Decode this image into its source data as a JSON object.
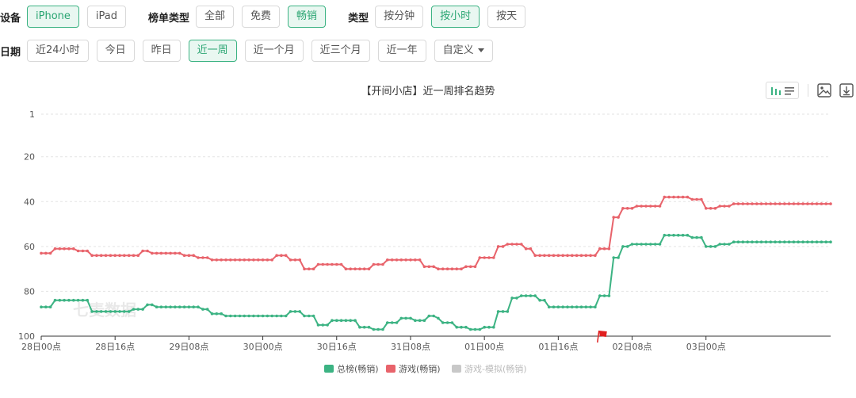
{
  "filters": {
    "device_label": "设备",
    "device_options": [
      {
        "label": "iPhone",
        "active": true
      },
      {
        "label": "iPad",
        "active": false
      }
    ],
    "rank_type_label": "榜单类型",
    "rank_type_options": [
      {
        "label": "全部",
        "active": false
      },
      {
        "label": "免费",
        "active": false
      },
      {
        "label": "畅销",
        "active": true
      }
    ],
    "type_label": "类型",
    "type_options": [
      {
        "label": "按分钟",
        "active": false
      },
      {
        "label": "按小时",
        "active": true
      },
      {
        "label": "按天",
        "active": false
      }
    ],
    "date_label": "日期",
    "date_options": [
      {
        "label": "近24小时",
        "active": false
      },
      {
        "label": "今日",
        "active": false
      },
      {
        "label": "昨日",
        "active": false
      },
      {
        "label": "近一周",
        "active": true
      },
      {
        "label": "近一个月",
        "active": false
      },
      {
        "label": "近三个月",
        "active": false
      },
      {
        "label": "近一年",
        "active": false
      }
    ],
    "custom_label": "自定义"
  },
  "toolbar": {
    "icons": [
      "bar-line-toggle-icon",
      "image-icon",
      "download-icon"
    ]
  },
  "watermark": "七麦数据",
  "colors": {
    "accent": "#3cb383",
    "series_total": "#3cb383",
    "series_game": "#e8636b",
    "series_disabled": "#c8c8c8",
    "marker_flag": "#e02020"
  },
  "chart_data": {
    "type": "line",
    "title": "【开间小店】近一周排名趋势",
    "xlabel": "",
    "ylabel": "",
    "y_inverted": true,
    "ylim": [
      1,
      100
    ],
    "y_ticks": [
      1,
      20,
      40,
      60,
      80,
      100
    ],
    "x_range": [
      0,
      171
    ],
    "x_ticks": [
      {
        "x": 0,
        "label": "28日00点"
      },
      {
        "x": 16,
        "label": "28日16点"
      },
      {
        "x": 32,
        "label": "29日08点"
      },
      {
        "x": 48,
        "label": "30日00点"
      },
      {
        "x": 64,
        "label": "30日16点"
      },
      {
        "x": 80,
        "label": "31日08点"
      },
      {
        "x": 96,
        "label": "01日00点"
      },
      {
        "x": 112,
        "label": "01日16点"
      },
      {
        "x": 128,
        "label": "02日08点"
      },
      {
        "x": 144,
        "label": "03日00点"
      }
    ],
    "grid": true,
    "legend_position": "bottom-center",
    "flag_marker_x": 121,
    "series": [
      {
        "name": "总榜(畅销)",
        "visible": true,
        "steps": [
          [
            0,
            87
          ],
          [
            3,
            84
          ],
          [
            11,
            89
          ],
          [
            20,
            88
          ],
          [
            23,
            86
          ],
          [
            25,
            87
          ],
          [
            35,
            88
          ],
          [
            37,
            90
          ],
          [
            40,
            91
          ],
          [
            53,
            91
          ],
          [
            54,
            89
          ],
          [
            57,
            91
          ],
          [
            60,
            95
          ],
          [
            63,
            93
          ],
          [
            69,
            96
          ],
          [
            72,
            97
          ],
          [
            75,
            94
          ],
          [
            78,
            92
          ],
          [
            81,
            93
          ],
          [
            84,
            91
          ],
          [
            86,
            92
          ],
          [
            87,
            94
          ],
          [
            90,
            96
          ],
          [
            93,
            97
          ],
          [
            96,
            96
          ],
          [
            99,
            89
          ],
          [
            102,
            83
          ],
          [
            104,
            82
          ],
          [
            108,
            84
          ],
          [
            110,
            87
          ],
          [
            120,
            87
          ],
          [
            121,
            82
          ],
          [
            123,
            82
          ],
          [
            124,
            65
          ],
          [
            126,
            60
          ],
          [
            128,
            59
          ],
          [
            135,
            55
          ],
          [
            141,
            56
          ],
          [
            144,
            60
          ],
          [
            147,
            59
          ],
          [
            150,
            58
          ]
        ]
      },
      {
        "name": "游戏(畅销)",
        "visible": true,
        "steps": [
          [
            0,
            63
          ],
          [
            3,
            61
          ],
          [
            8,
            62
          ],
          [
            11,
            64
          ],
          [
            22,
            62
          ],
          [
            24,
            63
          ],
          [
            31,
            64
          ],
          [
            34,
            65
          ],
          [
            37,
            66
          ],
          [
            50,
            66
          ],
          [
            51,
            64
          ],
          [
            54,
            66
          ],
          [
            57,
            70
          ],
          [
            60,
            68
          ],
          [
            66,
            70
          ],
          [
            72,
            68
          ],
          [
            75,
            66
          ],
          [
            83,
            69
          ],
          [
            86,
            70
          ],
          [
            91,
            70
          ],
          [
            92,
            69
          ],
          [
            95,
            65
          ],
          [
            99,
            60
          ],
          [
            101,
            59
          ],
          [
            105,
            61
          ],
          [
            107,
            64
          ],
          [
            115,
            64
          ],
          [
            121,
            61
          ],
          [
            123,
            61
          ],
          [
            124,
            47
          ],
          [
            126,
            43
          ],
          [
            129,
            42
          ],
          [
            135,
            38
          ],
          [
            141,
            39
          ],
          [
            144,
            43
          ],
          [
            147,
            42
          ],
          [
            150,
            41
          ]
        ]
      },
      {
        "name": "游戏-模拟(畅销)",
        "visible": false,
        "steps": []
      }
    ]
  }
}
